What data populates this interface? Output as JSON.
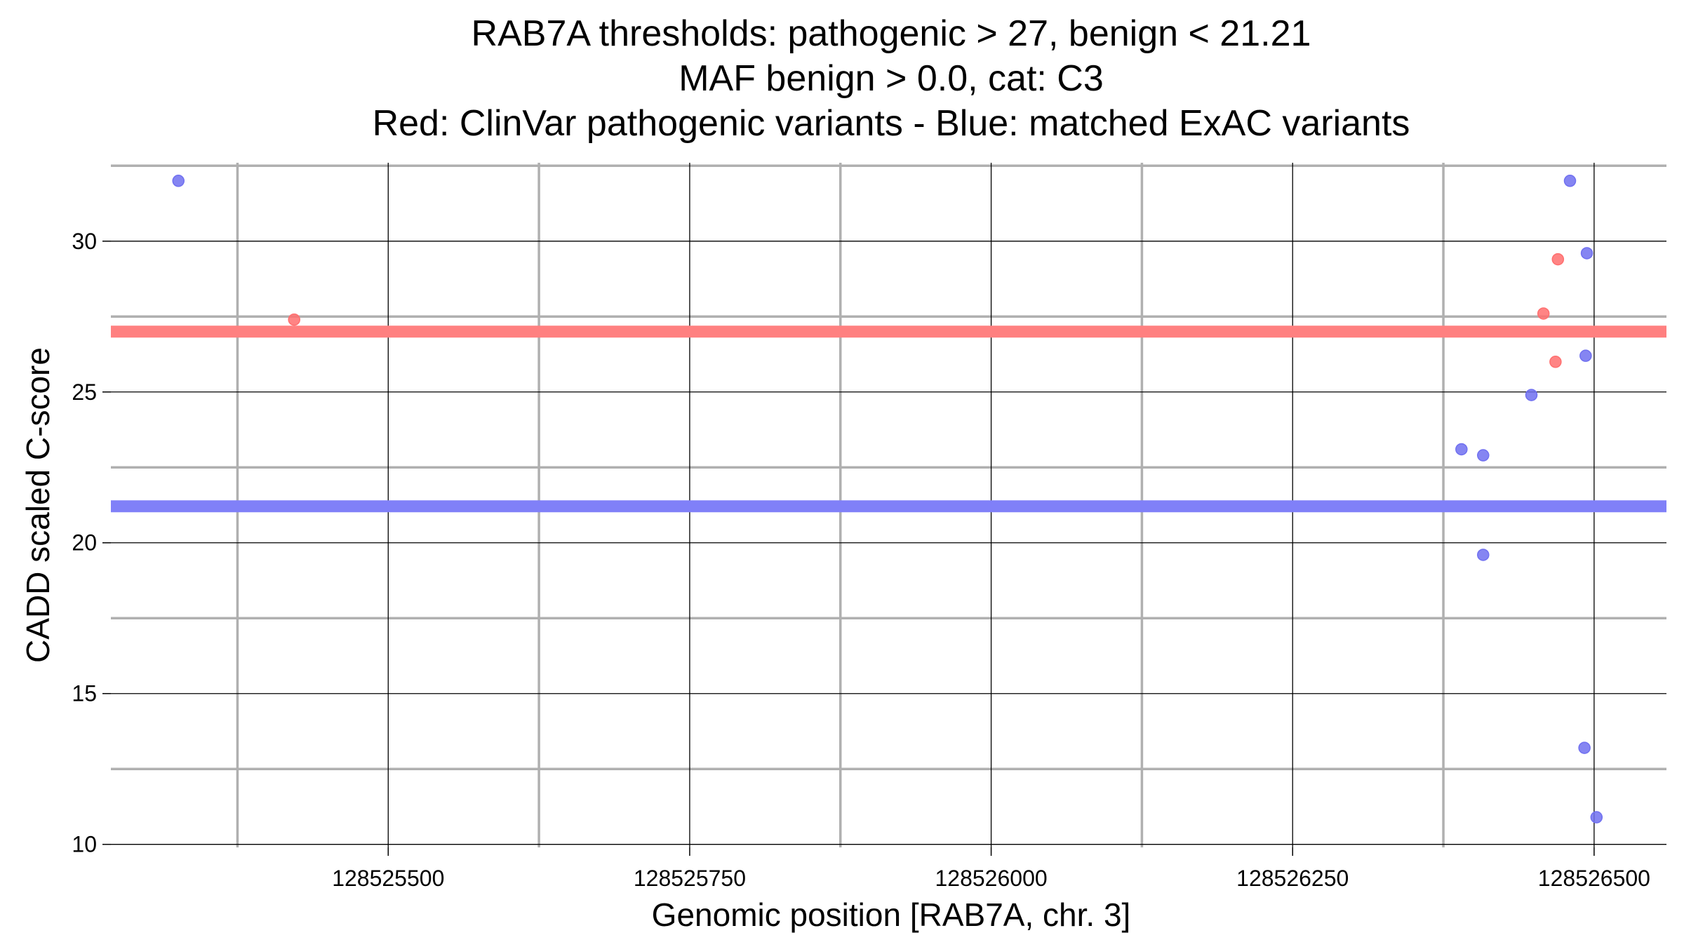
{
  "chart_data": {
    "type": "scatter",
    "title_lines": [
      "RAB7A thresholds: pathogenic > 27, benign < 21.21",
      "MAF benign > 0.0, cat: C3",
      "Red: ClinVar pathogenic variants - Blue: matched ExAC variants"
    ],
    "xlabel": "Genomic position [RAB7A, chr. 3]",
    "ylabel": "CADD scaled C-score",
    "xlim": [
      128525270,
      128526560
    ],
    "ylim": [
      9.9,
      32.6
    ],
    "x_major_ticks": [
      128525500,
      128525750,
      128526000,
      128526250,
      128526500
    ],
    "x_tick_labels": [
      "128525500",
      "128525750",
      "128526000",
      "128526250",
      "128526500"
    ],
    "x_minor_ticks": [
      128525375,
      128525625,
      128525875,
      128526125,
      128526375
    ],
    "y_major_ticks": [
      10,
      15,
      20,
      25,
      30
    ],
    "y_tick_labels": [
      "10",
      "15",
      "20",
      "25",
      "30"
    ],
    "y_minor_ticks": [
      12.5,
      17.5,
      22.5,
      27.5,
      32.5
    ],
    "grid": true,
    "thresholds": [
      {
        "value": 27,
        "color": "#ff8080"
      },
      {
        "value": 21.21,
        "color": "#8080f8"
      }
    ],
    "series": [
      {
        "color": "#ff6f6f",
        "points": [
          {
            "x": 128525422,
            "y": 27.4
          },
          {
            "x": 128526458,
            "y": 27.6
          },
          {
            "x": 128526468,
            "y": 26.0
          },
          {
            "x": 128526470,
            "y": 29.4
          }
        ]
      },
      {
        "color": "#7070f0",
        "points": [
          {
            "x": 128525326,
            "y": 32.0
          },
          {
            "x": 128526390,
            "y": 23.1
          },
          {
            "x": 128526408,
            "y": 22.9
          },
          {
            "x": 128526408,
            "y": 19.6
          },
          {
            "x": 128526448,
            "y": 24.9
          },
          {
            "x": 128526480,
            "y": 32.0
          },
          {
            "x": 128526492,
            "y": 13.2
          },
          {
            "x": 128526493,
            "y": 26.2
          },
          {
            "x": 128526494,
            "y": 29.6
          },
          {
            "x": 128526502,
            "y": 10.9
          }
        ]
      }
    ]
  }
}
